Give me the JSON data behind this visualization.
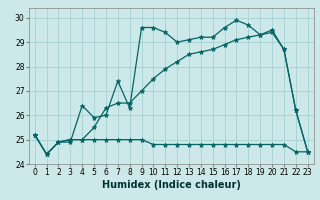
{
  "title": "",
  "xlabel": "Humidex (Indice chaleur)",
  "ylabel": "",
  "bg_color": "#cce8e8",
  "grid_color": "#aad4d4",
  "line_color": "#006666",
  "xlim": [
    -0.5,
    23.5
  ],
  "ylim": [
    24.0,
    30.4
  ],
  "yticks": [
    24,
    25,
    26,
    27,
    28,
    29,
    30
  ],
  "xticks": [
    0,
    1,
    2,
    3,
    4,
    5,
    6,
    7,
    8,
    9,
    10,
    11,
    12,
    13,
    14,
    15,
    16,
    17,
    18,
    19,
    20,
    21,
    22,
    23
  ],
  "line1_x": [
    0,
    1,
    2,
    3,
    4,
    5,
    6,
    7,
    8,
    9,
    10,
    11,
    12,
    13,
    14,
    15,
    16,
    17,
    18,
    19,
    20,
    21,
    22,
    23
  ],
  "line1_y": [
    25.2,
    24.4,
    24.9,
    24.9,
    26.4,
    25.9,
    26.0,
    27.4,
    26.3,
    29.6,
    29.6,
    29.4,
    29.0,
    29.1,
    29.2,
    29.2,
    29.6,
    29.9,
    29.7,
    29.3,
    29.5,
    28.7,
    26.2,
    24.5
  ],
  "line2_x": [
    0,
    1,
    2,
    3,
    4,
    5,
    6,
    7,
    8,
    9,
    10,
    11,
    12,
    13,
    14,
    15,
    16,
    17,
    18,
    19,
    20,
    21,
    22,
    23
  ],
  "line2_y": [
    25.2,
    24.4,
    24.9,
    25.0,
    25.0,
    25.5,
    26.3,
    26.5,
    26.5,
    27.0,
    27.5,
    27.9,
    28.2,
    28.5,
    28.6,
    28.7,
    28.9,
    29.1,
    29.2,
    29.3,
    29.4,
    28.7,
    26.2,
    24.5
  ],
  "line3_x": [
    0,
    1,
    2,
    3,
    4,
    5,
    6,
    7,
    8,
    9,
    10,
    11,
    12,
    13,
    14,
    15,
    16,
    17,
    18,
    19,
    20,
    21,
    22,
    23
  ],
  "line3_y": [
    25.2,
    24.4,
    24.9,
    25.0,
    25.0,
    25.0,
    25.0,
    25.0,
    25.0,
    25.0,
    24.8,
    24.8,
    24.8,
    24.8,
    24.8,
    24.8,
    24.8,
    24.8,
    24.8,
    24.8,
    24.8,
    24.8,
    24.5,
    24.5
  ],
  "tick_fontsize": 5.5,
  "xlabel_fontsize": 7
}
